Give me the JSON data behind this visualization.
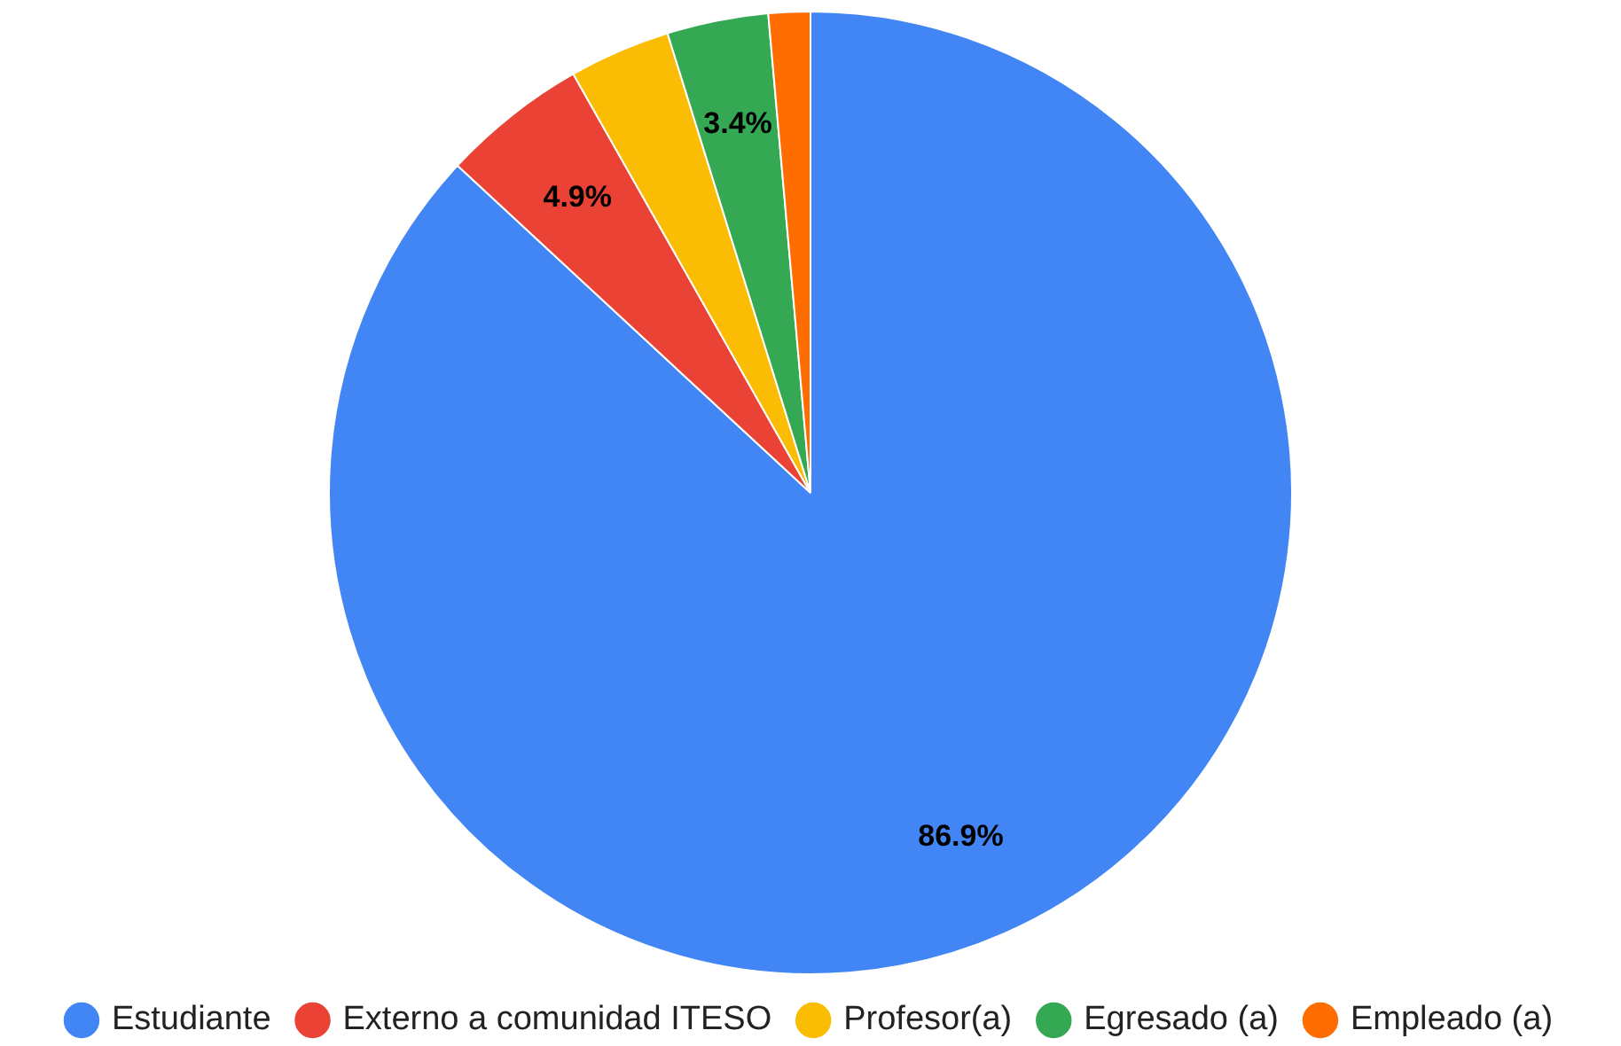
{
  "chart_data": {
    "type": "pie",
    "categories": [
      "Estudiante",
      "Externo a comunidad ITESO",
      "Profesor(a)",
      "Egresado (a)",
      "Empleado (a)"
    ],
    "values": [
      86.9,
      4.9,
      3.4,
      3.4,
      1.4
    ],
    "colors": [
      "#4285f4",
      "#ea4335",
      "#fbbc04",
      "#34a853",
      "#ff6d01"
    ],
    "value_labels": [
      "86.9%",
      "4.9%",
      null,
      "3.4%",
      null
    ],
    "legend": "bottom"
  }
}
